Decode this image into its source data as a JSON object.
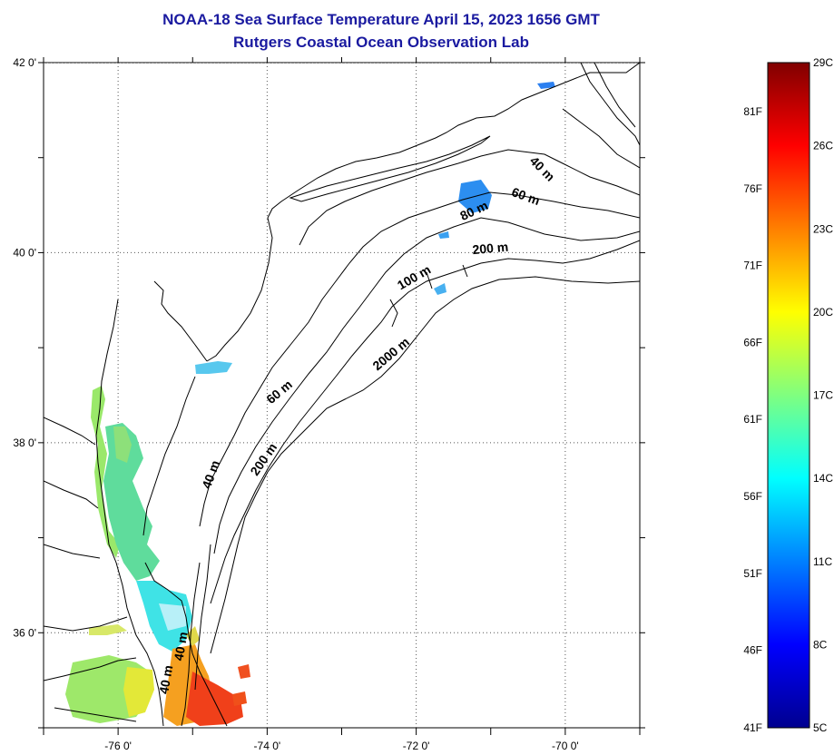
{
  "title": {
    "line1": "NOAA-18 Sea Surface Temperature April 15, 2023 1656 GMT",
    "line2": "Rutgers Coastal Ocean Observation Lab"
  },
  "map": {
    "lon_range": [
      -77.0,
      -69.0
    ],
    "lat_range": [
      35.0,
      42.0
    ],
    "lon_ticks": [
      {
        "value": -76,
        "label": "-76 0'"
      },
      {
        "value": -74,
        "label": "-74 0'"
      },
      {
        "value": -72,
        "label": "-72 0'"
      },
      {
        "value": -70,
        "label": "-70 0'"
      }
    ],
    "lat_ticks": [
      {
        "value": 42,
        "label": "42 0'"
      },
      {
        "value": 40,
        "label": "40 0'"
      },
      {
        "value": 38,
        "label": "38 0'"
      },
      {
        "value": 36,
        "label": "36 0'"
      }
    ],
    "grid": "dotted",
    "isobath_labels": [
      {
        "text": "40 m",
        "lon": -70.35,
        "lat": 40.85,
        "angle": 45
      },
      {
        "text": "60 m",
        "lon": -70.55,
        "lat": 40.55,
        "angle": 20
      },
      {
        "text": "80 m",
        "lon": -71.2,
        "lat": 40.4,
        "angle": -25
      },
      {
        "text": "200 m",
        "lon": -71.0,
        "lat": 40.0,
        "angle": -5
      },
      {
        "text": "100 m",
        "lon": -72.0,
        "lat": 39.7,
        "angle": -30
      },
      {
        "text": "2000 m",
        "lon": -72.3,
        "lat": 38.9,
        "angle": -40
      },
      {
        "text": "60 m",
        "lon": -73.8,
        "lat": 38.5,
        "angle": -40
      },
      {
        "text": "200 m",
        "lon": -74.0,
        "lat": 37.8,
        "angle": -55
      },
      {
        "text": "40 m",
        "lon": -74.7,
        "lat": 37.65,
        "angle": -70
      },
      {
        "text": "40 m",
        "lon": -75.1,
        "lat": 35.85,
        "angle": -80
      },
      {
        "text": "40 m",
        "lon": -75.3,
        "lat": 35.5,
        "angle": -80
      }
    ]
  },
  "colorbar": {
    "celsius": [
      "29C",
      "26C",
      "23C",
      "20C",
      "17C",
      "14C",
      "11C",
      "8C",
      "5C"
    ],
    "fahrenheit": [
      "81F",
      "76F",
      "71F",
      "66F",
      "61F",
      "56F",
      "51F",
      "46F",
      "41F"
    ],
    "range_c": [
      5,
      29
    ],
    "colormap": "jet"
  }
}
